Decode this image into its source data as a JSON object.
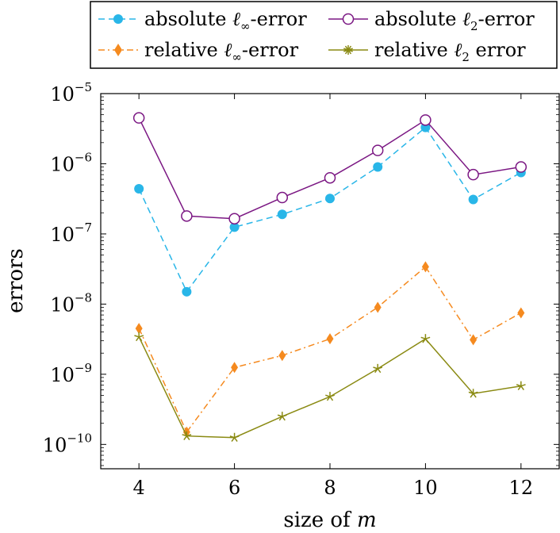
{
  "chart_data": {
    "type": "line",
    "xlabel_prefix": "size of",
    "xlabel_var": "m",
    "ylabel": "errors",
    "xlim": [
      3.2,
      12.8
    ],
    "ylim": [
      4.5e-11,
      1e-05
    ],
    "ylog": true,
    "xticks": [
      4,
      6,
      8,
      10,
      12
    ],
    "yticks": [
      {
        "value": 1e-10,
        "base": "10",
        "exp": "−10"
      },
      {
        "value": 1e-09,
        "base": "10",
        "exp": "−9"
      },
      {
        "value": 1e-08,
        "base": "10",
        "exp": "−8"
      },
      {
        "value": 1e-07,
        "base": "10",
        "exp": "−7"
      },
      {
        "value": 1e-06,
        "base": "10",
        "exp": "−6"
      },
      {
        "value": 1e-05,
        "base": "10",
        "exp": "−5"
      }
    ],
    "grid": false,
    "legend_position": "top-outside",
    "x": [
      4,
      5,
      6,
      7,
      8,
      9,
      10,
      11,
      12
    ],
    "series": [
      {
        "name_pre": "absolute ",
        "name_sym": "ℓ",
        "name_sub": "∞",
        "name_post": "-error",
        "color": "#29b6e8",
        "dash": "8,5",
        "marker": "circle-filled",
        "values": [
          4.4e-07,
          1.5e-08,
          1.25e-07,
          1.9e-07,
          3.2e-07,
          9e-07,
          3.3e-06,
          3.1e-07,
          7.5e-07
        ]
      },
      {
        "name_pre": "absolute ",
        "name_sym": "ℓ",
        "name_sub": "2",
        "name_post": "-error",
        "color": "#7b1783",
        "dash": "",
        "marker": "circle-open",
        "values": [
          4.5e-06,
          1.8e-07,
          1.65e-07,
          3.3e-07,
          6.3e-07,
          1.55e-06,
          4.2e-06,
          7e-07,
          9e-07
        ]
      },
      {
        "name_pre": "relative ",
        "name_sym": "ℓ",
        "name_sub": "∞",
        "name_post": "-error",
        "color": "#f58a1f",
        "dash": "8,4,2,4",
        "marker": "diamond",
        "values": [
          4.5e-09,
          1.5e-10,
          1.25e-09,
          1.85e-09,
          3.2e-09,
          9e-09,
          3.4e-08,
          3.1e-09,
          7.5e-09
        ]
      },
      {
        "name_pre": "relative ",
        "name_sym": "ℓ",
        "name_sub": "2",
        "name_post": " error",
        "color": "#8a8a12",
        "dash": "",
        "marker": "star",
        "values": [
          3.4e-09,
          1.32e-10,
          1.25e-10,
          2.5e-10,
          4.8e-10,
          1.2e-09,
          3.2e-09,
          5.3e-10,
          6.8e-10
        ]
      }
    ]
  }
}
